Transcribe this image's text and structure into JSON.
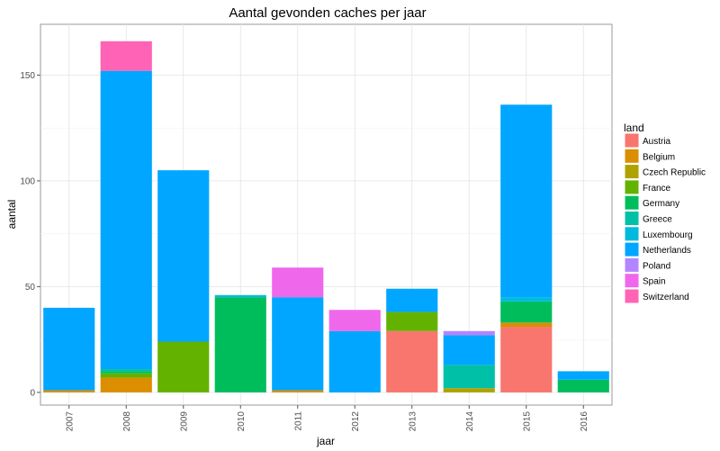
{
  "chart_data": {
    "type": "bar",
    "stacked": true,
    "title": "Aantal gevonden caches per jaar",
    "xlabel": "jaar",
    "ylabel": "aantal",
    "categories": [
      "2007",
      "2008",
      "2009",
      "2010",
      "2011",
      "2012",
      "2013",
      "2014",
      "2015",
      "2016"
    ],
    "ylim": [
      -6,
      174
    ],
    "yticks": [
      0,
      50,
      100,
      150
    ],
    "grid": true,
    "legend_title": "land",
    "legend_position": "right",
    "series": [
      {
        "name": "Austria",
        "color": "#F8766D",
        "values": [
          0,
          0,
          0,
          0,
          0,
          0,
          29,
          0,
          31,
          0
        ]
      },
      {
        "name": "Belgium",
        "color": "#DB8E00",
        "values": [
          1,
          7,
          0,
          0,
          1,
          0,
          0,
          0,
          2,
          0
        ]
      },
      {
        "name": "Czech Republic",
        "color": "#AEA200",
        "values": [
          0,
          0,
          0,
          0,
          0,
          0,
          0,
          2,
          0,
          0
        ]
      },
      {
        "name": "France",
        "color": "#64B200",
        "values": [
          0,
          2,
          24,
          0,
          0,
          0,
          9,
          0,
          0,
          0
        ]
      },
      {
        "name": "Germany",
        "color": "#00BD5C",
        "values": [
          0,
          1,
          0,
          45,
          0,
          0,
          0,
          0,
          10,
          6
        ]
      },
      {
        "name": "Greece",
        "color": "#00C1A7",
        "values": [
          0,
          1,
          0,
          0,
          0,
          0,
          0,
          11,
          0,
          0
        ]
      },
      {
        "name": "Luxembourg",
        "color": "#00BADE",
        "values": [
          0,
          0,
          0,
          1,
          0,
          0,
          0,
          0,
          2,
          0
        ]
      },
      {
        "name": "Netherlands",
        "color": "#00A6FF",
        "values": [
          39,
          141,
          81,
          0,
          44,
          29,
          11,
          14,
          91,
          4
        ]
      },
      {
        "name": "Poland",
        "color": "#B385FF",
        "values": [
          0,
          0,
          0,
          0,
          0,
          0,
          0,
          2,
          0,
          0
        ]
      },
      {
        "name": "Spain",
        "color": "#EF67EB",
        "values": [
          0,
          0,
          0,
          0,
          14,
          10,
          0,
          0,
          0,
          0
        ]
      },
      {
        "name": "Switzerland",
        "color": "#FF63B6",
        "values": [
          0,
          14,
          0,
          0,
          0,
          0,
          0,
          0,
          0,
          0
        ]
      }
    ]
  }
}
